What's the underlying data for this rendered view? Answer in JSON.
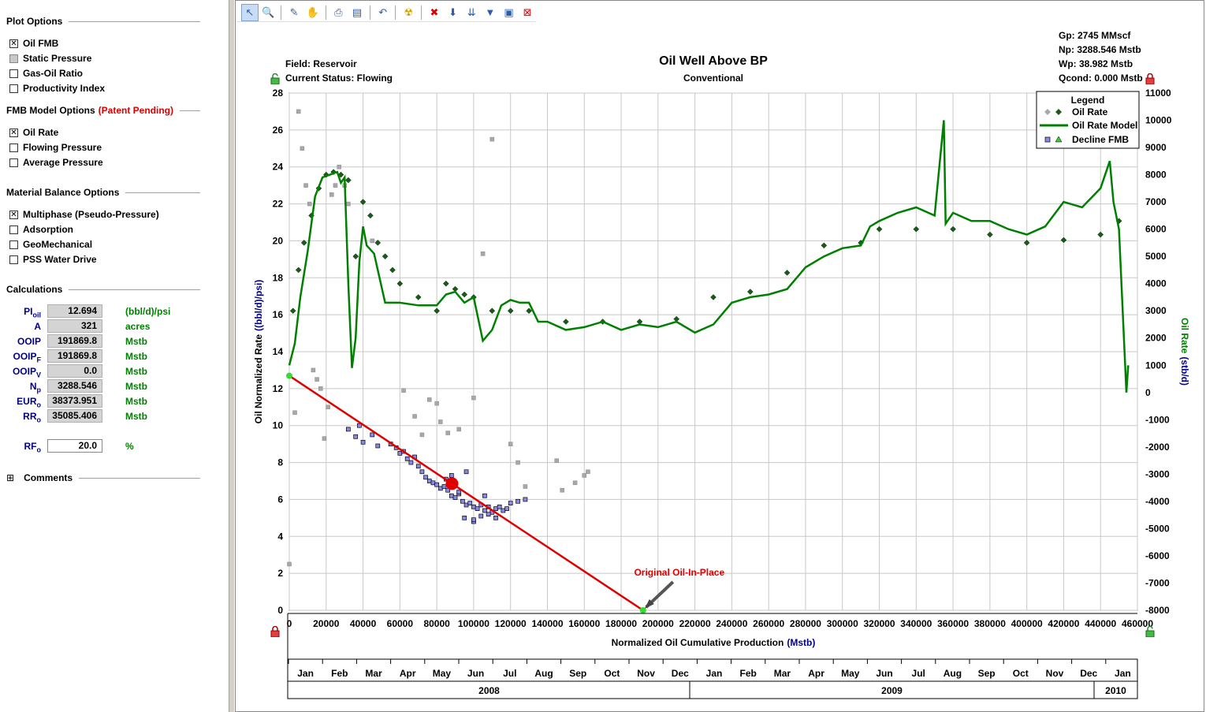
{
  "left_panel": {
    "plot_options": {
      "title": "Plot Options",
      "items": [
        {
          "label": "Oil FMB",
          "state": "checked"
        },
        {
          "label": "Static Pressure",
          "state": "grey"
        },
        {
          "label": "Gas-Oil Ratio",
          "state": "unchecked"
        },
        {
          "label": "Productivity Index",
          "state": "unchecked"
        }
      ]
    },
    "fmb_model_options": {
      "title": "FMB Model Options",
      "patent": "(Patent Pending)",
      "items": [
        {
          "label": "Oil Rate",
          "state": "checked"
        },
        {
          "label": "Flowing Pressure",
          "state": "unchecked"
        },
        {
          "label": "Average Pressure",
          "state": "unchecked"
        }
      ]
    },
    "material_balance_options": {
      "title": "Material Balance Options",
      "items": [
        {
          "label": "Multiphase (Pseudo-Pressure)",
          "state": "checked"
        },
        {
          "label": "Adsorption",
          "state": "unchecked"
        },
        {
          "label": "GeoMechanical",
          "state": "unchecked"
        },
        {
          "label": "PSS Water Drive",
          "state": "unchecked"
        }
      ]
    },
    "calculations": {
      "title": "Calculations",
      "rows": [
        {
          "label": "PI",
          "sub": "oil",
          "value": "12.694",
          "unit": "(bbl/d)/psi"
        },
        {
          "label": "A",
          "sub": "",
          "value": "321",
          "unit": "acres"
        },
        {
          "label": "OOIP",
          "sub": "",
          "value": "191869.8",
          "unit": "Mstb"
        },
        {
          "label": "OOIP",
          "sub": "F",
          "value": "191869.8",
          "unit": "Mstb"
        },
        {
          "label": "OOIP",
          "sub": "V",
          "value": "0.0",
          "unit": "Mstb"
        },
        {
          "label": "N",
          "sub": "p",
          "value": "3288.546",
          "unit": "Mstb"
        },
        {
          "label": "EUR",
          "sub": "o",
          "value": "38373.951",
          "unit": "Mstb"
        },
        {
          "label": "RR",
          "sub": "o",
          "value": "35085.406",
          "unit": "Mstb"
        }
      ],
      "rf": {
        "label": "RF",
        "sub": "o",
        "value": "20.0",
        "unit": "%"
      }
    },
    "comments": {
      "title": "Comments",
      "toggle": "⊞"
    }
  },
  "toolbar": {
    "buttons": [
      "pointer-icon",
      "zoom-icon",
      "pan-hand-icon",
      "grab-icon",
      "print-icon",
      "print-preview-icon",
      "undo-zoom-icon",
      "radiation-icon",
      "delete-points-icon",
      "arrow-down-icon",
      "arrows-down-icon",
      "filter-icon",
      "select-box-icon",
      "clear-select-icon"
    ]
  },
  "plot_info": {
    "field": "Field: Reservoir",
    "status": "Current Status: Flowing",
    "title": "Oil Well Above BP",
    "subtitle": "Conventional",
    "gp": "Gp: 2745 MMscf",
    "np": "Np: 3288.546 Mstb",
    "wp": "Wp: 38.982 Mstb",
    "qcond": "Qcond: 0.000 Mstb"
  },
  "chart_data": {
    "type": "scatter",
    "title": "Oil Well Above BP",
    "subtitle": "Conventional",
    "xlabel_main": "Normalized Oil Cumulative Production",
    "xlabel_unit": "(Mstb)",
    "ylabel_main": "Oil Normalized Rate",
    "ylabel_unit": "((bbl/d)/psi)",
    "y2label_main": "Oil Rate",
    "y2label_unit": "(stb/d)",
    "xlim": [
      0,
      460000
    ],
    "ylim": [
      0,
      28
    ],
    "y2lim": [
      -8000,
      11000
    ],
    "x_ticks": [
      0,
      20000,
      40000,
      60000,
      80000,
      100000,
      120000,
      140000,
      160000,
      180000,
      200000,
      220000,
      240000,
      260000,
      280000,
      300000,
      320000,
      340000,
      360000,
      380000,
      400000,
      420000,
      440000,
      460000
    ],
    "y_ticks": [
      0,
      2,
      4,
      6,
      8,
      10,
      12,
      14,
      16,
      18,
      20,
      22,
      24,
      26,
      28
    ],
    "y2_ticks": [
      11000,
      10000,
      9000,
      8000,
      7000,
      6000,
      5000,
      4000,
      3000,
      2000,
      1000,
      0,
      -1000,
      -2000,
      -3000,
      -4000,
      -5000,
      -6000,
      -7000,
      -8000
    ],
    "grid": true,
    "legend": {
      "title": "Legend",
      "placement": "top-right",
      "entries": [
        "Oil Rate",
        "Oil Rate Model",
        "Decline FMB"
      ]
    },
    "colors": {
      "oil_rate_dark": "#1a5a1a",
      "oil_rate_grey": "#a8a8a8",
      "model_line": "#008000",
      "fmb_points": "#8a8ae6",
      "fmb_line": "#e00000",
      "ooip_label": "#e00000",
      "axis_blue": "#00008b"
    },
    "fmb_line": {
      "x": [
        0,
        191869.8
      ],
      "y": [
        12.694,
        0
      ]
    },
    "annotation": {
      "text": "Original Oil-In-Place",
      "x": 191869.8,
      "y": 0
    },
    "time_axis": {
      "months": [
        "Jan",
        "Feb",
        "Mar",
        "Apr",
        "May",
        "Jun",
        "Jul",
        "Aug",
        "Sep",
        "Oct",
        "Nov",
        "Dec",
        "Jan",
        "Feb",
        "Mar",
        "Apr",
        "May",
        "Jun",
        "Jul",
        "Aug",
        "Sep",
        "Oct",
        "Nov",
        "Dec",
        "Jan"
      ],
      "years": [
        "2008",
        "2009",
        "2010"
      ]
    },
    "oil_rate_series": {
      "name": "Oil Rate",
      "x": [
        2000,
        5000,
        8000,
        12000,
        16000,
        20000,
        24000,
        28000,
        32000,
        36000,
        40000,
        44000,
        48000,
        52000,
        56000,
        60000,
        70000,
        80000,
        85000,
        90000,
        95000,
        100000,
        110000,
        120000,
        130000,
        150000,
        170000,
        190000,
        210000,
        230000,
        250000,
        270000,
        290000,
        310000,
        320000,
        340000,
        360000,
        380000,
        400000,
        420000,
        440000,
        450000
      ],
      "y": [
        3000,
        4500,
        5500,
        6500,
        7500,
        8000,
        8100,
        8000,
        7800,
        5000,
        7000,
        6500,
        5500,
        5000,
        4500,
        4000,
        3500,
        3000,
        4000,
        3800,
        3600,
        3500,
        3000,
        3000,
        3000,
        2600,
        2600,
        2600,
        2700,
        3500,
        3700,
        4400,
        5400,
        5500,
        6000,
        6000,
        6000,
        5800,
        5500,
        5600,
        5800,
        6300
      ]
    },
    "oil_rate_model": {
      "name": "Oil Rate Model",
      "x": [
        0,
        3000,
        6000,
        10000,
        14000,
        18000,
        22000,
        26000,
        28000,
        30000,
        32000,
        34000,
        36000,
        38000,
        40000,
        42000,
        46000,
        52000,
        60000,
        70000,
        80000,
        85000,
        90000,
        95000,
        100000,
        105000,
        110000,
        115000,
        120000,
        125000,
        130000,
        135000,
        140000,
        150000,
        160000,
        170000,
        180000,
        190000,
        200000,
        210000,
        220000,
        230000,
        240000,
        250000,
        260000,
        270000,
        280000,
        290000,
        300000,
        310000,
        315000,
        320000,
        330000,
        340000,
        350000,
        355000,
        356000,
        360000,
        370000,
        380000,
        390000,
        400000,
        410000,
        420000,
        430000,
        440000,
        445000,
        447000,
        450000,
        452000,
        454000,
        455000
      ],
      "y": [
        1000,
        1800,
        3500,
        5200,
        7200,
        7900,
        8000,
        8100,
        7700,
        7900,
        4000,
        900,
        2000,
        4800,
        6100,
        5400,
        5100,
        3300,
        3300,
        3200,
        3200,
        3600,
        3700,
        3300,
        3500,
        1900,
        2300,
        3200,
        3400,
        3300,
        3300,
        2600,
        2600,
        2300,
        2400,
        2600,
        2300,
        2500,
        2400,
        2600,
        2200,
        2500,
        3300,
        3500,
        3600,
        3800,
        4600,
        5000,
        5300,
        5400,
        6100,
        6300,
        6600,
        6800,
        6500,
        10000,
        6200,
        6600,
        6300,
        6300,
        6000,
        5800,
        6100,
        7000,
        6800,
        7500,
        8500,
        7000,
        6000,
        3000,
        0,
        1000
      ]
    },
    "fmb_points": {
      "name": "Decline FMB",
      "x": [
        32000,
        36000,
        40000,
        38000,
        45000,
        48000,
        55000,
        58000,
        60000,
        62000,
        64000,
        66000,
        68000,
        70000,
        72000,
        74000,
        76000,
        78000,
        80000,
        82000,
        84000,
        86000,
        88000,
        90000,
        92000,
        94000,
        96000,
        98000,
        100000,
        102000,
        104000,
        106000,
        108000,
        110000,
        112000,
        114000,
        116000,
        118000,
        120000,
        124000,
        128000,
        85000,
        88000,
        92000,
        95000,
        100000,
        104000,
        108000,
        112000,
        96000,
        100000,
        106000
      ],
      "y": [
        9.8,
        9.4,
        9.1,
        10.0,
        9.5,
        8.9,
        9.0,
        8.8,
        8.5,
        8.6,
        8.2,
        8.0,
        8.3,
        7.8,
        7.5,
        7.2,
        7.0,
        6.9,
        6.8,
        6.6,
        6.7,
        6.5,
        6.2,
        6.1,
        6.3,
        5.9,
        5.7,
        5.8,
        5.6,
        5.5,
        5.7,
        5.4,
        5.6,
        5.3,
        5.5,
        5.6,
        5.4,
        5.5,
        5.8,
        5.9,
        6.0,
        7.1,
        7.3,
        6.4,
        5.0,
        4.8,
        5.1,
        5.2,
        5.0,
        7.5,
        4.9,
        6.2
      ]
    },
    "grey_points": {
      "x": [
        0,
        3000,
        5000,
        7000,
        9000,
        11000,
        13000,
        15000,
        17000,
        19000,
        21000,
        23000,
        25000,
        27000,
        30000,
        32000,
        45000,
        62000,
        68000,
        72000,
        76000,
        80000,
        82000,
        86000,
        92000,
        100000,
        105000,
        110000,
        120000,
        124000,
        128000,
        145000,
        148000,
        155000,
        160000,
        162000
      ],
      "y": [
        2.5,
        10.7,
        27.0,
        25.0,
        23.0,
        22.0,
        13.0,
        12.5,
        12.0,
        9.3,
        11.0,
        22.5,
        23.0,
        24.0,
        23.0,
        22.0,
        20.0,
        11.9,
        10.5,
        9.5,
        11.4,
        11.2,
        10.2,
        9.6,
        9.8,
        11.5,
        19.3,
        25.5,
        9.0,
        8.0,
        6.7,
        8.1,
        6.5,
        6.9,
        7.3,
        7.5
      ]
    }
  }
}
